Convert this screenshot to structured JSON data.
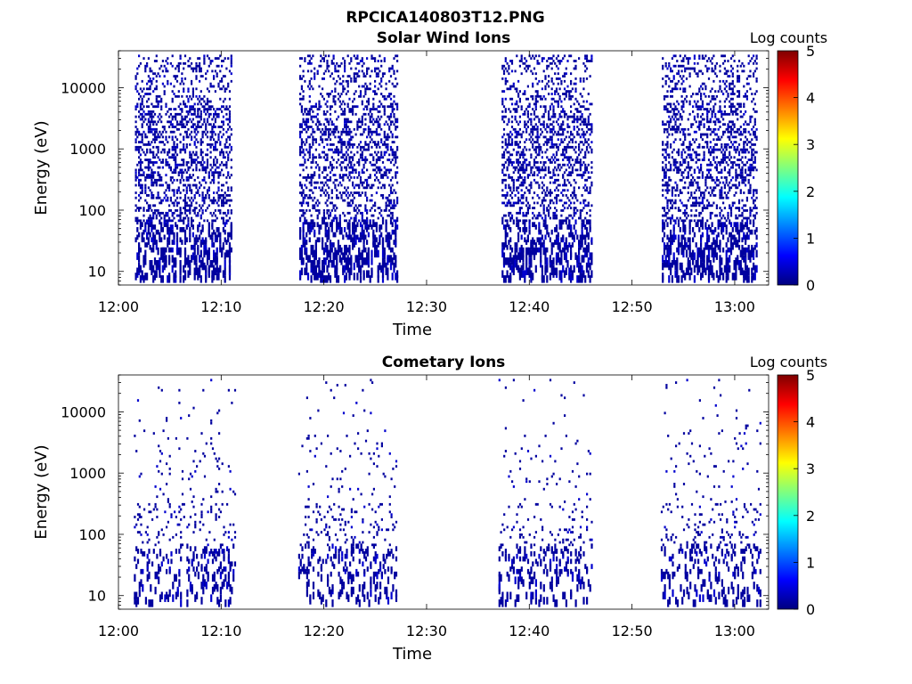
{
  "figure_title": "RPCICA140803T12.PNG",
  "colorscale": {
    "stops": [
      "#00007f",
      "#0000ff",
      "#007fff",
      "#00ffff",
      "#7fff7f",
      "#ffff00",
      "#ff7f00",
      "#ff0000",
      "#7f0000"
    ]
  },
  "chart_data": [
    {
      "type": "heatmap",
      "title": "Solar Wind Ions",
      "xlabel": "Time",
      "ylabel": "Energy (eV)",
      "x_ticks": [
        {
          "value": 0,
          "label": "12:00"
        },
        {
          "value": 10,
          "label": "12:10"
        },
        {
          "value": 20,
          "label": "12:20"
        },
        {
          "value": 30,
          "label": "12:30"
        },
        {
          "value": 40,
          "label": "12:40"
        },
        {
          "value": 50,
          "label": "12:50"
        },
        {
          "value": 60,
          "label": "13:00"
        }
      ],
      "xlim_minutes_after_12_00": [
        0,
        63.3
      ],
      "y_scale": "log",
      "y_ticks": [
        {
          "value": 10,
          "label": "10"
        },
        {
          "value": 100,
          "label": "100"
        },
        {
          "value": 1000,
          "label": "1000"
        },
        {
          "value": 10000,
          "label": "10000"
        }
      ],
      "ylim": [
        6,
        40000
      ],
      "colorbar": {
        "label": "Log counts",
        "min": 0,
        "max": 5,
        "ticks": [
          "0",
          "1",
          "2",
          "3",
          "4",
          "5"
        ]
      },
      "activity_intervals_minutes": [
        [
          1.6,
          11.0
        ],
        [
          17.6,
          27.2
        ],
        [
          37.3,
          46.0
        ],
        [
          52.9,
          62.2
        ]
      ],
      "approx_value_log_counts": 0.1
    },
    {
      "type": "heatmap",
      "title": "Cometary Ions",
      "xlabel": "Time",
      "ylabel": "Energy (eV)",
      "x_ticks": [
        {
          "value": 0,
          "label": "12:00"
        },
        {
          "value": 10,
          "label": "12:10"
        },
        {
          "value": 20,
          "label": "12:20"
        },
        {
          "value": 30,
          "label": "12:30"
        },
        {
          "value": 40,
          "label": "12:40"
        },
        {
          "value": 50,
          "label": "12:50"
        },
        {
          "value": 60,
          "label": "13:00"
        }
      ],
      "xlim_minutes_after_12_00": [
        0,
        63.3
      ],
      "y_scale": "log",
      "y_ticks": [
        {
          "value": 10,
          "label": "10"
        },
        {
          "value": 100,
          "label": "100"
        },
        {
          "value": 1000,
          "label": "1000"
        },
        {
          "value": 10000,
          "label": "10000"
        }
      ],
      "ylim": [
        6,
        40000
      ],
      "colorbar": {
        "label": "Log counts",
        "min": 0,
        "max": 5,
        "ticks": [
          "0",
          "1",
          "2",
          "3",
          "4",
          "5"
        ]
      },
      "activity_intervals_minutes": [
        [
          1.5,
          11.3
        ],
        [
          17.5,
          27.0
        ],
        [
          37.0,
          46.0
        ],
        [
          52.8,
          62.5
        ]
      ],
      "approx_value_log_counts": 0.1
    }
  ]
}
